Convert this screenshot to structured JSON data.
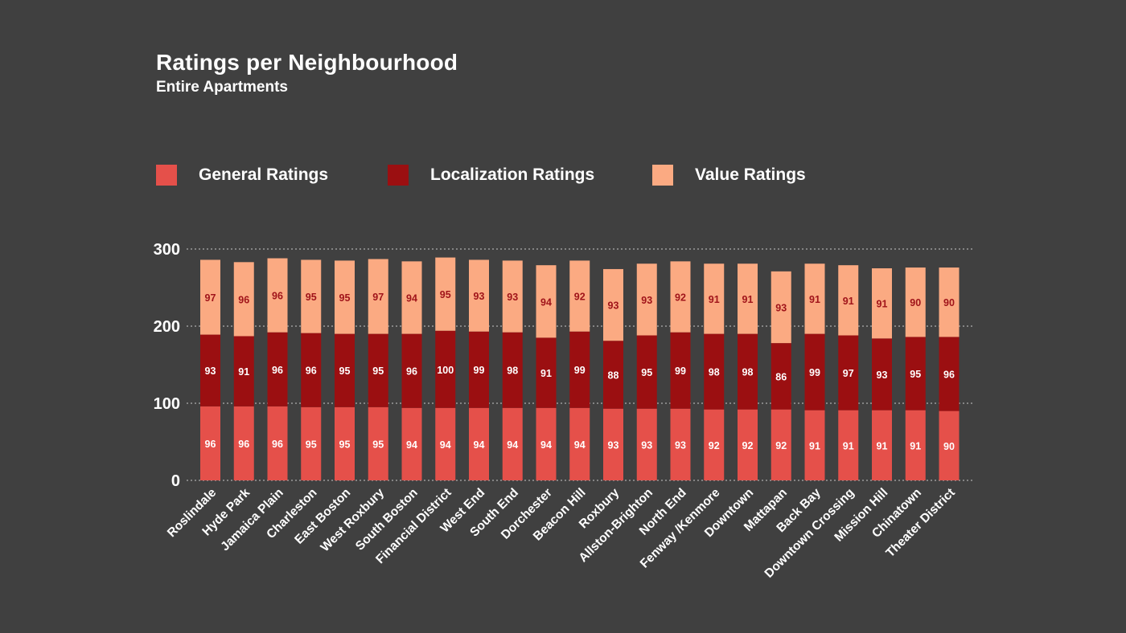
{
  "chart_data": {
    "type": "bar",
    "stacked": true,
    "title": "Ratings per Neighbourhood",
    "subtitle": "Entire Apartments",
    "xlabel": "",
    "ylabel": "",
    "ylim": [
      0,
      300
    ],
    "yticks": [
      0,
      100,
      200,
      300
    ],
    "grid": true,
    "legend_position": "top",
    "categories": [
      "Roslindale",
      "Hyde Park",
      "Jamaica Plain",
      "Charleston",
      "East Boston",
      "West Roxbury",
      "South Boston",
      "Financial District",
      "West End",
      "South End",
      "Dorchester",
      "Beacon Hill",
      "Roxbury",
      "Allston-Brighton",
      "North End",
      "Fenway /Kenmore",
      "Downtown",
      "Mattapan",
      "Back Bay",
      "Downtown Crossing",
      "Mission Hill",
      "Chinatown",
      "Theater District"
    ],
    "series": [
      {
        "name": "General Ratings",
        "color": "#e5504a",
        "label_color": "#ffffff",
        "values": [
          96,
          96,
          96,
          95,
          95,
          95,
          94,
          94,
          94,
          94,
          94,
          94,
          93,
          93,
          93,
          92,
          92,
          92,
          91,
          91,
          91,
          91,
          90
        ]
      },
      {
        "name": "Localization Ratings",
        "color": "#9b0f11",
        "label_color": "#ffffff",
        "values": [
          93,
          91,
          96,
          96,
          95,
          95,
          96,
          100,
          99,
          98,
          91,
          99,
          88,
          95,
          99,
          98,
          98,
          86,
          99,
          97,
          93,
          95,
          96
        ]
      },
      {
        "name": "Value Ratings",
        "color": "#fbaa82",
        "label_color": "#a0141a",
        "values": [
          97,
          96,
          96,
          95,
          95,
          97,
          94,
          95,
          93,
          93,
          94,
          92,
          93,
          93,
          92,
          91,
          91,
          93,
          91,
          91,
          91,
          90,
          90
        ]
      }
    ]
  }
}
